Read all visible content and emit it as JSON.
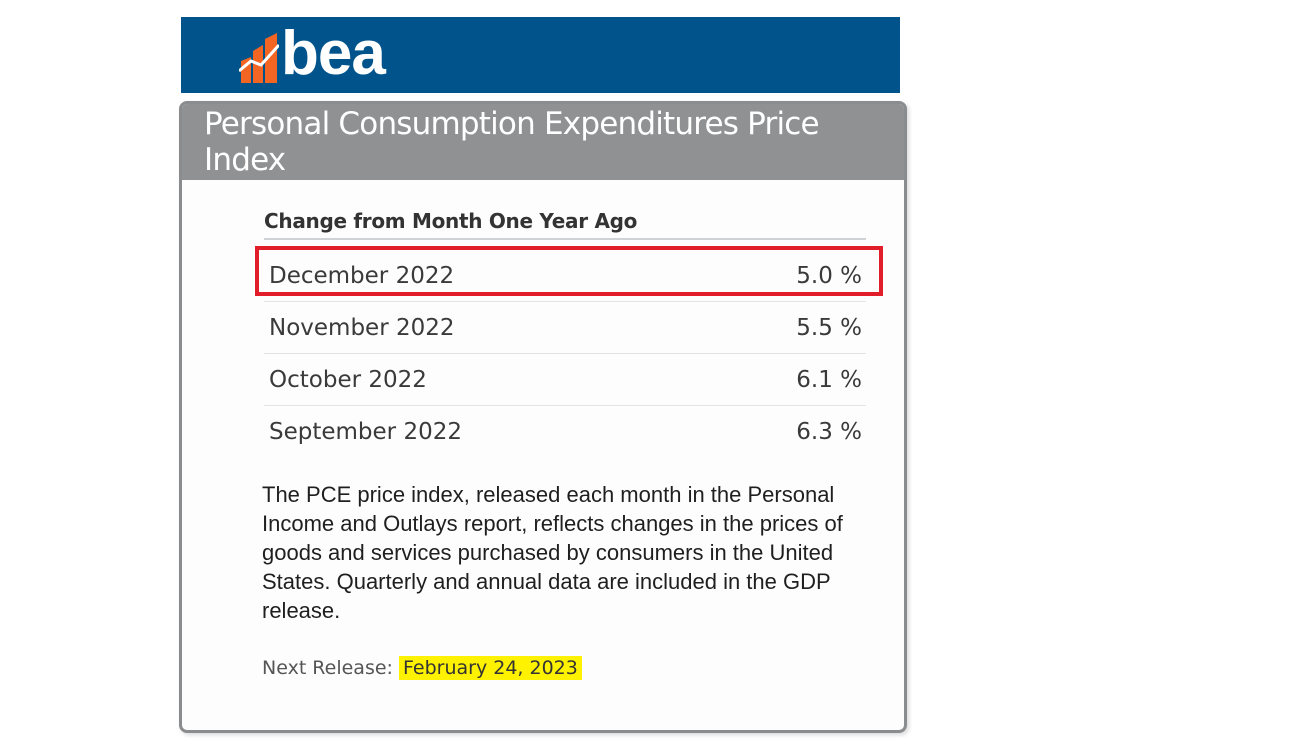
{
  "brand": {
    "logo_text": "bea",
    "colors": {
      "header": "#00548b",
      "logo_orange": "#f26522"
    }
  },
  "card": {
    "title": "Personal Consumption Expenditures Price Index",
    "subtitle": "Change from Month One Year Ago",
    "rows": [
      {
        "month": "December 2022",
        "value": "5.0 %",
        "highlighted": true
      },
      {
        "month": "November 2022",
        "value": "5.5 %"
      },
      {
        "month": "October 2022",
        "value": "6.1 %"
      },
      {
        "month": "September 2022",
        "value": "6.3 %"
      }
    ],
    "description": "The PCE price index, released each month in the Personal Income and Outlays report, reflects changes in the prices of goods and services purchased by consumers in the United States. Quarterly and annual data are included in the GDP release.",
    "next_release_label": "Next Release:",
    "next_release_date": "February 24, 2023"
  },
  "annotation_color": "#e11d2a",
  "highlight_color": "#fff200"
}
